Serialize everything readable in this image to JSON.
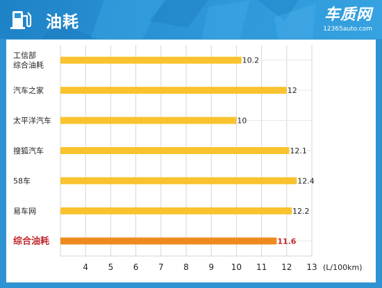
{
  "header": {
    "title": "油耗",
    "brand_name": "车质网",
    "brand_url": "12365auto.com"
  },
  "colors": {
    "frame": "#2f93d3",
    "bar": "#f9c22e",
    "highlight_bar": "#ef8a1e",
    "highlight_text": "#c0282d",
    "grid": "#d5d5d5",
    "text": "#222222"
  },
  "chart_data": {
    "type": "bar",
    "orientation": "horizontal",
    "categories": [
      "工信部\n综合油耗",
      "汽车之家",
      "太平洋汽车",
      "搜狐汽车",
      "58车",
      "易车网",
      "综合油耗"
    ],
    "values": [
      10.2,
      12,
      10,
      12.1,
      12.4,
      12.2,
      11.6
    ],
    "value_labels": [
      "10.2",
      "12",
      "10",
      "12.1",
      "12.4",
      "12.2",
      "11.6"
    ],
    "highlight_index": 6,
    "xlim": [
      3,
      13
    ],
    "xticks": [
      4,
      5,
      6,
      7,
      8,
      9,
      10,
      11,
      12,
      13
    ],
    "unit": "(L/100km)",
    "grid": "vertical"
  }
}
